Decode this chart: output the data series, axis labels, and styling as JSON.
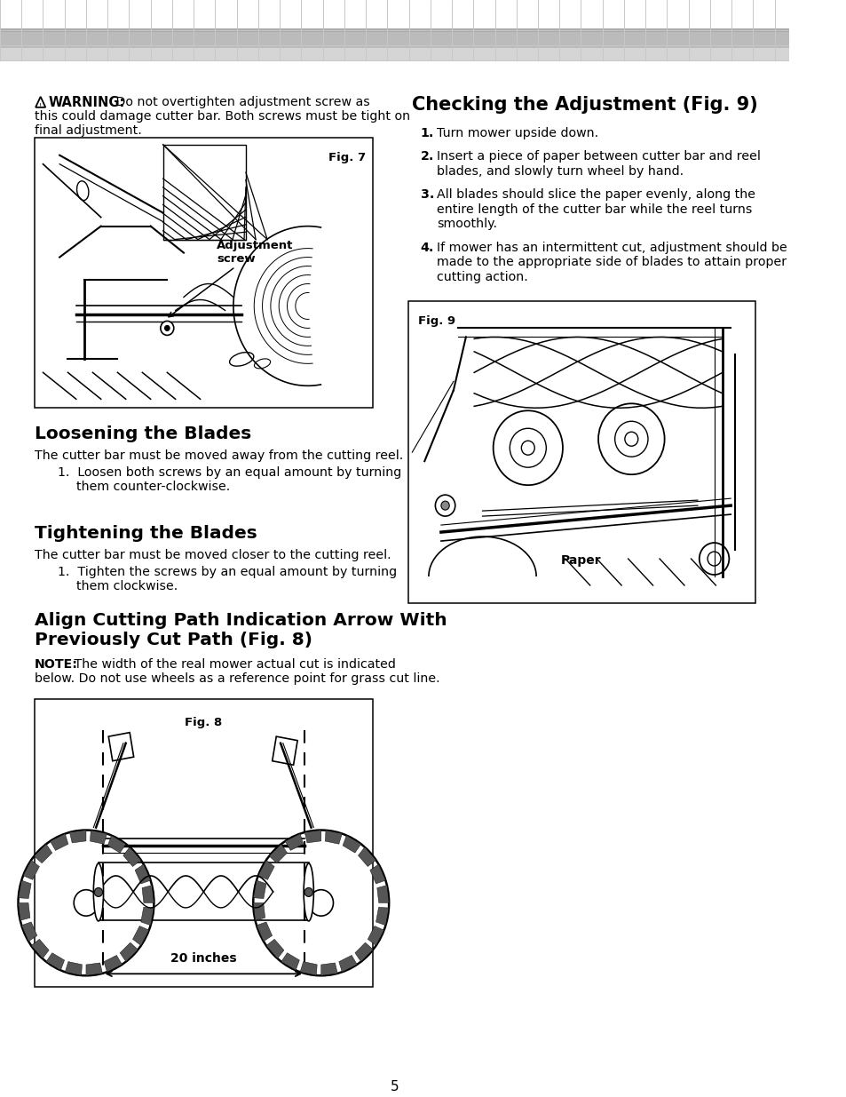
{
  "bg_page_color": "#ffffff",
  "page_number": "5",
  "warning_bold": "WARNING:",
  "warning_text1": " Do not overtighten adjustment screw as",
  "warning_text2": "this could damage cutter bar. Both screws must be tight on",
  "warning_text3": "final adjustment.",
  "fig7_label": "Fig. 7",
  "fig7_ann_text": "Adjustment\nscrew",
  "section1_title": "Loosening the Blades",
  "section1_body": "The cutter bar must be moved away from the cutting reel.",
  "section1_item1a": "1.  Loosen both screws by an equal amount by turning",
  "section1_item1b": "them counter-clockwise.",
  "section2_title": "Tightening the Blades",
  "section2_body": "The cutter bar must be moved closer to the cutting reel.",
  "section2_item1a": "1.  Tighten the screws by an equal amount by turning",
  "section2_item1b": "them clockwise.",
  "section3_title": "Align Cutting Path Indication Arrow With\nPreviously Cut Path (Fig. 8)",
  "section3_note_bold": "NOTE:",
  "section3_note1": " The width of the real mower actual cut is indicated",
  "section3_note2": "below. Do not use wheels as a reference point for grass cut line.",
  "fig8_label": "Fig. 8",
  "fig8_ann": "20 inches",
  "right_title": "Checking the Adjustment (Fig. 9)",
  "right_items": [
    [
      "1.",
      "Turn mower upside down."
    ],
    [
      "2.",
      "Insert a piece of paper between cutter bar and reel\nblades, and slowly turn wheel by hand."
    ],
    [
      "3.",
      "All blades should slice the paper evenly, along the\nentire length of the cutter bar while the reel turns\nsmoothly."
    ],
    [
      "4.",
      "If mower has an intermittent cut, adjustment should be\nmade to the appropriate side of blades to attain proper\ncutting action."
    ]
  ],
  "fig9_label": "Fig. 9",
  "fig9_ann": "Paper",
  "header_dark": "#aaaaaa",
  "header_mid": "#bbbbbb",
  "header_light": "#d5d5d5",
  "grid_line": "#c8c8c8"
}
